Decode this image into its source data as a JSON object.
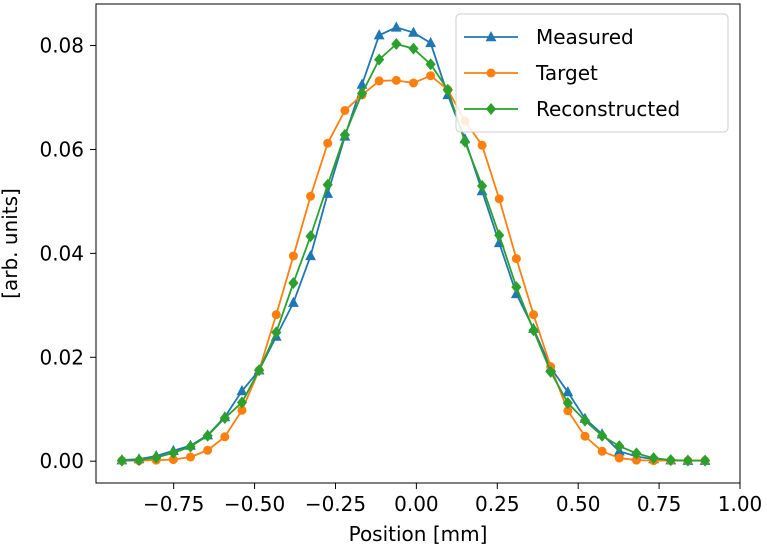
{
  "chart_data": {
    "type": "line",
    "title": "",
    "xlabel": "Position [mm]",
    "ylabel": "[arb. units]",
    "xlim": [
      -0.99,
      1.0
    ],
    "ylim": [
      -0.0042,
      0.088
    ],
    "xticks": [
      -0.75,
      -0.5,
      -0.25,
      0.0,
      0.25,
      0.5,
      0.75,
      1.0
    ],
    "xtick_labels": [
      "−0.75",
      "−0.50",
      "−0.25",
      "0.00",
      "0.25",
      "0.50",
      "0.75",
      "1.00"
    ],
    "yticks": [
      0.0,
      0.02,
      0.04,
      0.06,
      0.08
    ],
    "ytick_labels": [
      "0.00",
      "0.02",
      "0.04",
      "0.06",
      "0.08"
    ],
    "grid": false,
    "legend_position": "top-right",
    "x": [
      -0.91,
      -0.857,
      -0.804,
      -0.751,
      -0.698,
      -0.645,
      -0.592,
      -0.539,
      -0.486,
      -0.433,
      -0.38,
      -0.327,
      -0.274,
      -0.221,
      -0.168,
      -0.115,
      -0.062,
      -0.009,
      0.044,
      0.097,
      0.15,
      0.203,
      0.256,
      0.309,
      0.362,
      0.415,
      0.468,
      0.521,
      0.574,
      0.627,
      0.68,
      0.733,
      0.786,
      0.839,
      0.892
    ],
    "series": [
      {
        "name": "Measured",
        "color": "#1f77b4",
        "marker": "triangle",
        "values": [
          0.0002,
          0.0004,
          0.001,
          0.002,
          0.003,
          0.005,
          0.0085,
          0.0135,
          0.0175,
          0.024,
          0.0305,
          0.0395,
          0.0515,
          0.0625,
          0.0725,
          0.082,
          0.0835,
          0.0825,
          0.0805,
          0.0705,
          0.062,
          0.052,
          0.042,
          0.0322,
          0.0255,
          0.018,
          0.0133,
          0.0082,
          0.0052,
          0.0019,
          0.0009,
          0.0004,
          0.0002,
          0.0001,
          0.0001
        ]
      },
      {
        "name": "Target",
        "color": "#ff7f0e",
        "marker": "circle",
        "values": [
          0.0001,
          0.0001,
          0.0002,
          0.0003,
          0.0008,
          0.0021,
          0.0047,
          0.0098,
          0.0175,
          0.0282,
          0.0395,
          0.051,
          0.0612,
          0.0675,
          0.0705,
          0.0732,
          0.0733,
          0.0728,
          0.0742,
          0.0715,
          0.0655,
          0.0608,
          0.0505,
          0.039,
          0.0282,
          0.0182,
          0.0097,
          0.0048,
          0.0019,
          0.0006,
          0.0002,
          0.0001,
          0.0001,
          0.0001,
          0.0001
        ]
      },
      {
        "name": "Reconstructed",
        "color": "#2ca02c",
        "marker": "diamond",
        "values": [
          0.0001,
          0.0002,
          0.0007,
          0.0016,
          0.0028,
          0.0049,
          0.0083,
          0.0113,
          0.0175,
          0.0248,
          0.0343,
          0.0433,
          0.0532,
          0.0628,
          0.0708,
          0.0773,
          0.0803,
          0.0794,
          0.0764,
          0.0715,
          0.0615,
          0.053,
          0.0435,
          0.0335,
          0.0252,
          0.0172,
          0.0112,
          0.0078,
          0.0049,
          0.0029,
          0.0015,
          0.0006,
          0.0002,
          0.0001,
          0.0001
        ]
      }
    ]
  }
}
